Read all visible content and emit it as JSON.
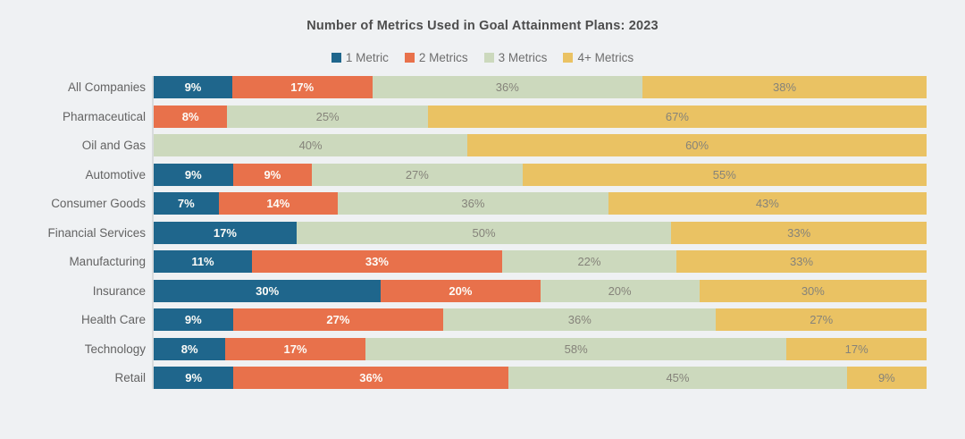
{
  "title": "Number of Metrics Used in Goal Attainment Plans: 2023",
  "colors": {
    "background": "#eff1f3",
    "axis_line": "#d8dbdd",
    "title_text": "#4d4d4d",
    "legend_text": "#6e6e6e",
    "category_text": "#636363"
  },
  "chart_data": {
    "type": "bar",
    "variant": "horizontal-stacked",
    "title": "Number of Metrics Used in Goal Attainment Plans: 2023",
    "xlabel": "",
    "ylabel": "",
    "xlim": [
      0,
      100
    ],
    "grid": false,
    "legend_position": "top",
    "value_suffix": "%",
    "categories": [
      "All Companies",
      "Pharmaceutical",
      "Oil and Gas",
      "Automotive",
      "Consumer Goods",
      "Financial Services",
      "Manufacturing",
      "Insurance",
      "Health Care",
      "Technology",
      "Retail"
    ],
    "series": [
      {
        "name": "1 Metric",
        "color": "#1f668c",
        "label_style": "on-dark",
        "values": [
          9,
          0,
          0,
          9,
          7,
          17,
          11,
          30,
          9,
          8,
          9
        ]
      },
      {
        "name": "2 Metrics",
        "color": "#e8714b",
        "label_style": "on-dark",
        "values": [
          17,
          8,
          0,
          9,
          14,
          0,
          33,
          20,
          27,
          17,
          36
        ]
      },
      {
        "name": "3 Metrics",
        "color": "#ccd9bd",
        "label_style": "on-light",
        "values": [
          36,
          25,
          40,
          27,
          36,
          50,
          22,
          20,
          36,
          58,
          45
        ]
      },
      {
        "name": "4+ Metrics",
        "color": "#eac263",
        "label_style": "on-light",
        "values": [
          38,
          67,
          60,
          55,
          43,
          33,
          33,
          30,
          27,
          17,
          9
        ]
      }
    ]
  }
}
